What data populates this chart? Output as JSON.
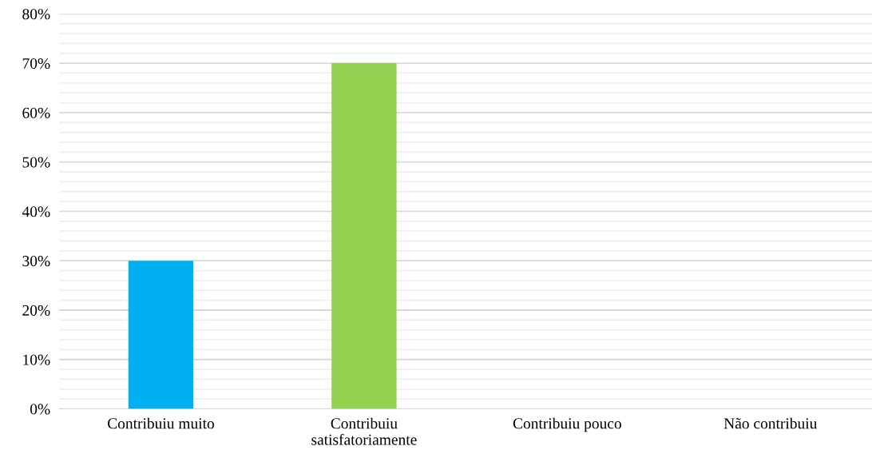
{
  "chart_data": {
    "type": "bar",
    "categories": [
      "Contribuiu muito",
      "Contribuiu\nsatisfatoriamente",
      "Contribuiu pouco",
      "Não contribuiu"
    ],
    "values": [
      30,
      70,
      0,
      0
    ],
    "colors": [
      "#00b0f0",
      "#92d050",
      "#92d050",
      "#92d050"
    ],
    "ylim": [
      0,
      80
    ],
    "yticks": [
      {
        "value": 0,
        "label": "0%"
      },
      {
        "value": 2,
        "label": null
      },
      {
        "value": 4,
        "label": null
      },
      {
        "value": 6,
        "label": null
      },
      {
        "value": 8,
        "label": null
      },
      {
        "value": 10,
        "label": "10%"
      },
      {
        "value": 12,
        "label": null
      },
      {
        "value": 14,
        "label": null
      },
      {
        "value": 16,
        "label": null
      },
      {
        "value": 18,
        "label": null
      },
      {
        "value": 20,
        "label": "20%"
      },
      {
        "value": 22,
        "label": null
      },
      {
        "value": 24,
        "label": null
      },
      {
        "value": 26,
        "label": null
      },
      {
        "value": 28,
        "label": null
      },
      {
        "value": 30,
        "label": "30%"
      },
      {
        "value": 32,
        "label": null
      },
      {
        "value": 34,
        "label": null
      },
      {
        "value": 36,
        "label": null
      },
      {
        "value": 38,
        "label": null
      },
      {
        "value": 40,
        "label": "40%"
      },
      {
        "value": 42,
        "label": null
      },
      {
        "value": 44,
        "label": null
      },
      {
        "value": 46,
        "label": null
      },
      {
        "value": 48,
        "label": null
      },
      {
        "value": 50,
        "label": "50%"
      },
      {
        "value": 52,
        "label": null
      },
      {
        "value": 54,
        "label": null
      },
      {
        "value": 56,
        "label": null
      },
      {
        "value": 58,
        "label": null
      },
      {
        "value": 60,
        "label": "60%"
      },
      {
        "value": 62,
        "label": null
      },
      {
        "value": 64,
        "label": null
      },
      {
        "value": 66,
        "label": null
      },
      {
        "value": 68,
        "label": null
      },
      {
        "value": 70,
        "label": "70%"
      },
      {
        "value": 72,
        "label": null
      },
      {
        "value": 74,
        "label": null
      },
      {
        "value": 76,
        "label": null
      },
      {
        "value": 78,
        "label": null
      },
      {
        "value": 80,
        "label": "80%"
      }
    ],
    "grid": "y"
  }
}
